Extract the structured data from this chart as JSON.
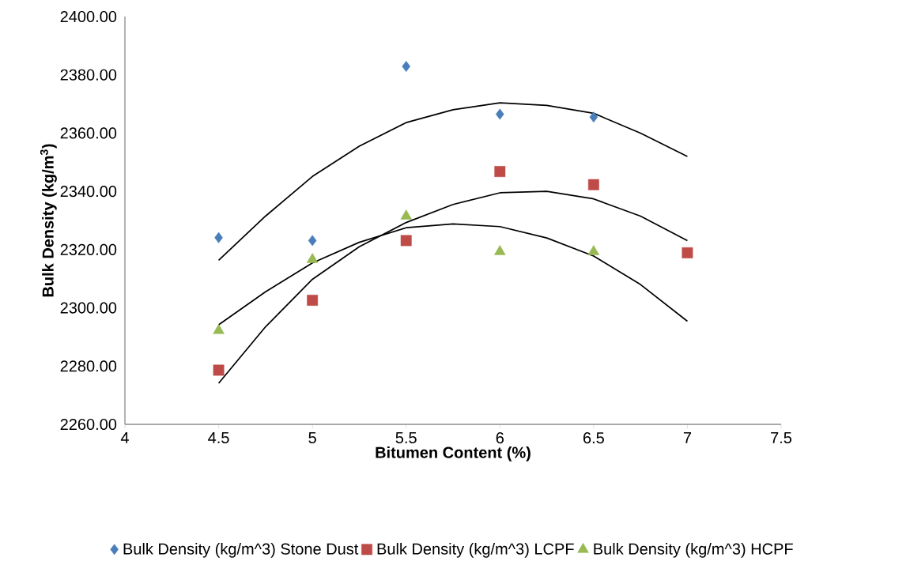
{
  "chart_data": {
    "type": "scatter",
    "xlabel": "Bitumen Content (%)",
    "ylabel": "Bulk Density (kg/m$^{3}$)",
    "xlim": [
      4,
      7.5
    ],
    "xticks": [
      4,
      4.5,
      5,
      5.5,
      6,
      6.5,
      7,
      7.5
    ],
    "ylim": [
      2260,
      2400
    ],
    "yticks": [
      {
        "value": 2260,
        "label": "2260.00"
      },
      {
        "value": 2280,
        "label": "2280.00"
      },
      {
        "value": 2300,
        "label": "2300.00"
      },
      {
        "value": 2320,
        "label": "2320.00"
      },
      {
        "value": 2340,
        "label": "2340.00"
      },
      {
        "value": 2360,
        "label": "2360.00"
      },
      {
        "value": 2380,
        "label": "2380.00"
      },
      {
        "value": 2400,
        "label": "2400.00"
      }
    ],
    "grid": false,
    "legend": "bottom",
    "series": [
      {
        "name": "Bulk Density (kg/m^3) Stone Dust",
        "color": "#4a7ebb",
        "marker": "diamond",
        "x": [
          4.5,
          5,
          5.5,
          6,
          6.5
        ],
        "values": [
          2324.1,
          2323.1,
          2382.9,
          2366.5,
          2365.5
        ]
      },
      {
        "name": "Bulk Density (kg/m^3) LCPF",
        "color": "#be4b48",
        "marker": "square",
        "x": [
          4.5,
          5,
          5.5,
          6,
          6.5,
          7
        ],
        "values": [
          2278.6,
          2302.6,
          2323.1,
          2346.8,
          2342.3,
          2318.9
        ]
      },
      {
        "name": "Bulk Density (kg/m^3) HCPF",
        "color": "#98b954",
        "marker": "triangle",
        "x": [
          4.5,
          5,
          5.5,
          6,
          6.5
        ],
        "values": [
          2292.2,
          2316.6,
          2331.5,
          2319.3,
          2319.3
        ]
      },
      {
        "type": "line",
        "color": "#000000",
        "marker": "none",
        "x": [
          4.5,
          4.75,
          5,
          5.25,
          5.5,
          5.75,
          6,
          6.25,
          6.5,
          6.75,
          7
        ],
        "values": [
          2316.3,
          2331.5,
          2345.1,
          2355.5,
          2363.6,
          2368.0,
          2370.4,
          2369.5,
          2366.8,
          2360.0,
          2352.0
        ]
      },
      {
        "type": "line",
        "color": "#000000",
        "marker": "none",
        "x": [
          4.5,
          4.75,
          5,
          5.25,
          5.5,
          5.75,
          6,
          6.25,
          6.5,
          6.75,
          7
        ],
        "values": [
          2274.1,
          2293.5,
          2309.8,
          2321.0,
          2329.3,
          2335.5,
          2339.5,
          2340.0,
          2337.4,
          2331.5,
          2323.1
        ]
      },
      {
        "type": "line",
        "color": "#000000",
        "marker": "none",
        "x": [
          4.5,
          4.75,
          5,
          5.25,
          5.5,
          5.75,
          6,
          6.25,
          6.5,
          6.75,
          7
        ],
        "values": [
          2294.2,
          2305.5,
          2315.4,
          2322.5,
          2327.5,
          2328.8,
          2327.9,
          2324.0,
          2317.8,
          2308.0,
          2295.4
        ]
      }
    ]
  }
}
